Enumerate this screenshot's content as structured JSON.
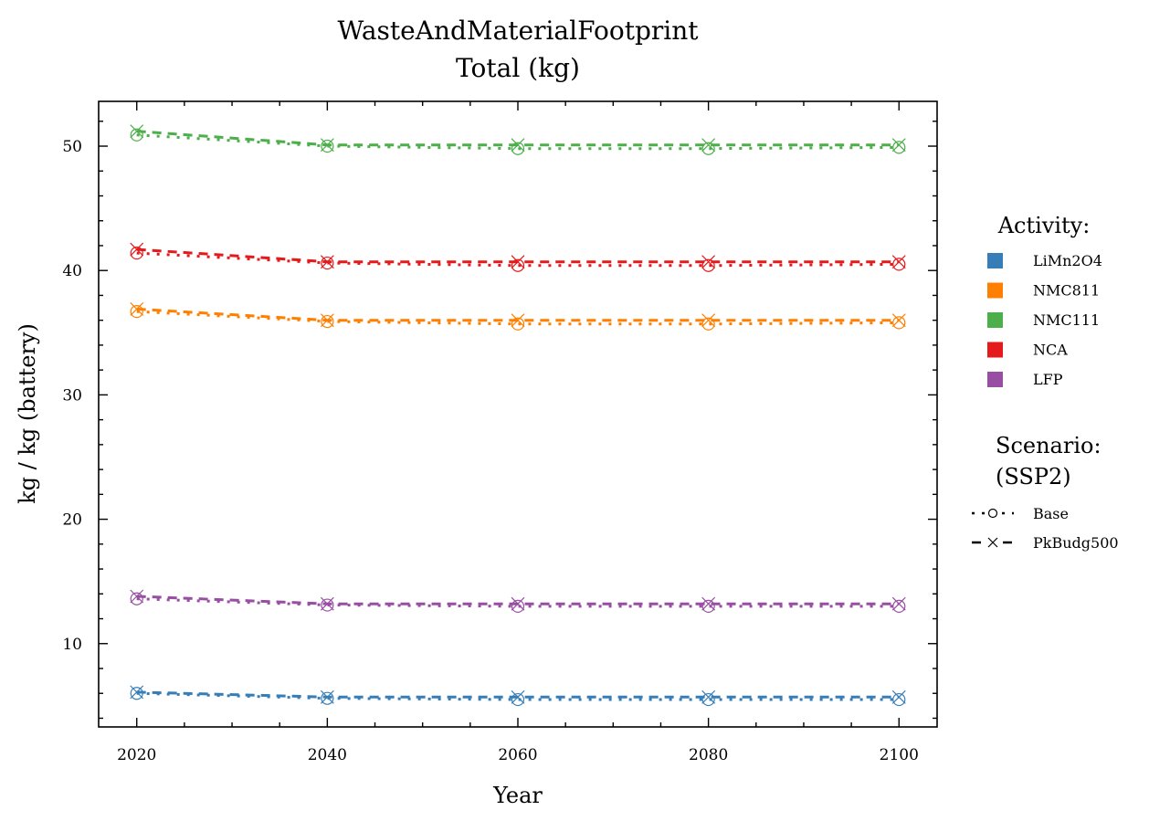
{
  "chart_data": {
    "type": "line",
    "title": [
      "WasteAndMaterialFootprint",
      "Total (kg)"
    ],
    "xlabel": "Year",
    "ylabel": "kg / kg (battery)",
    "xlim": [
      2016,
      2104
    ],
    "ylim": [
      3.3,
      53.6
    ],
    "x_ticks": [
      2020,
      2040,
      2060,
      2080,
      2100
    ],
    "y_ticks": [
      10,
      20,
      30,
      40,
      50
    ],
    "x": [
      2020,
      2040,
      2060,
      2080,
      2100
    ],
    "activity_legend_title": "Activity:",
    "scenario_legend_title": [
      "Scenario:",
      "(SSP2)"
    ],
    "scenarios": [
      {
        "name": "Base",
        "marker": "circle",
        "dash": "dotted"
      },
      {
        "name": "PkBudg500",
        "marker": "x",
        "dash": "dashed"
      }
    ],
    "series": [
      {
        "name": "LiMn2O4",
        "color": "#377eb8",
        "Base": [
          6.0,
          5.6,
          5.5,
          5.5,
          5.5
        ],
        "PkBudg500": [
          6.1,
          5.7,
          5.7,
          5.7,
          5.7
        ]
      },
      {
        "name": "NMC811",
        "color": "#ff7f00",
        "Base": [
          36.7,
          35.9,
          35.7,
          35.7,
          35.8
        ],
        "PkBudg500": [
          36.9,
          36.0,
          36.0,
          36.0,
          36.0
        ]
      },
      {
        "name": "NMC111",
        "color": "#4daf4a",
        "Base": [
          50.9,
          50.0,
          49.8,
          49.8,
          49.9
        ],
        "PkBudg500": [
          51.2,
          50.1,
          50.1,
          50.1,
          50.1
        ]
      },
      {
        "name": "NCA",
        "color": "#e41a1c",
        "Base": [
          41.4,
          40.6,
          40.4,
          40.4,
          40.5
        ],
        "PkBudg500": [
          41.7,
          40.7,
          40.7,
          40.7,
          40.7
        ]
      },
      {
        "name": "LFP",
        "color": "#984ea3",
        "Base": [
          13.6,
          13.1,
          13.0,
          13.0,
          13.0
        ],
        "PkBudg500": [
          13.8,
          13.2,
          13.2,
          13.2,
          13.2
        ]
      }
    ]
  }
}
